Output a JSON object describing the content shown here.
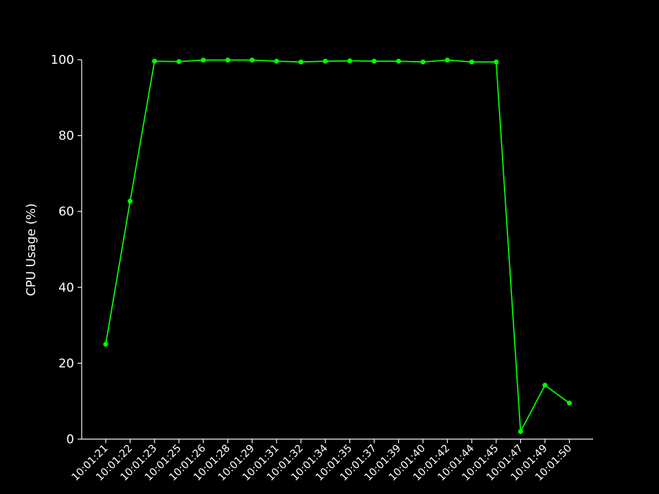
{
  "chart_data": {
    "type": "line",
    "title": "",
    "xlabel": "",
    "ylabel": "CPU Usage (%)",
    "ylim": [
      0,
      100
    ],
    "yticks": [
      0,
      20,
      40,
      60,
      80,
      100
    ],
    "grid": false,
    "legend": "none",
    "categories": [
      "10:01:21",
      "10:01:22",
      "10:01:23",
      "10:01:25",
      "10:01:26",
      "10:01:28",
      "10:01:29",
      "10:01:31",
      "10:01:32",
      "10:01:34",
      "10:01:35",
      "10:01:37",
      "10:01:39",
      "10:01:40",
      "10:01:42",
      "10:01:44",
      "10:01:45",
      "10:01:47",
      "10:01:49",
      "10:01:50"
    ],
    "series": [
      {
        "values": [
          25.0,
          62.7,
          99.6,
          99.5,
          99.9,
          99.9,
          99.9,
          99.6,
          99.4,
          99.6,
          99.7,
          99.6,
          99.6,
          99.4,
          99.9,
          99.4,
          99.4,
          2.0,
          14.2,
          9.5
        ]
      }
    ],
    "colors": {
      "background": "#000000",
      "axis": "#ffffff",
      "text": "#ffffff",
      "series": "#00ff00"
    }
  }
}
